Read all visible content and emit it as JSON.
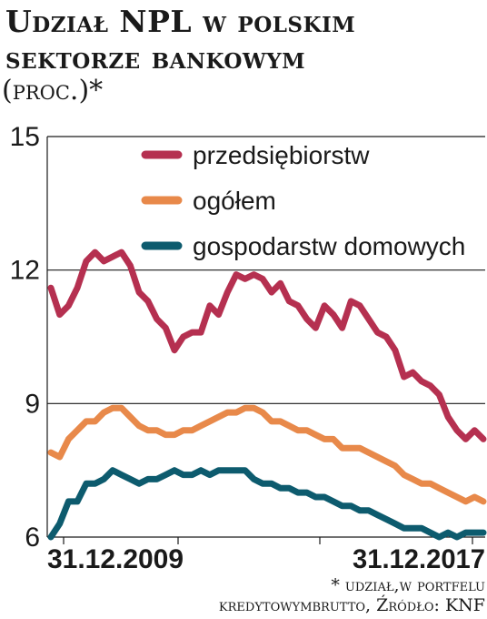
{
  "title_line1": "Udział NPL w polskim",
  "title_line2": "sektorze bankowym",
  "subtitle": "(proc.)*",
  "footnote_line1": "* udział,w portfelu",
  "footnote_line2": "kredytowymbrutto, Źródło: KNF",
  "colors": {
    "enterprises": "#b53050",
    "total": "#e8894a",
    "households": "#0d5b6e",
    "grid": "#1a1a1a"
  },
  "chart_data": {
    "type": "line",
    "x_start_label": "31.12.2009",
    "x_end_label": "31.12.2017",
    "y_ticks": [
      15,
      12,
      9,
      6
    ],
    "ylim": [
      6,
      15
    ],
    "grid": true,
    "legend_position": "top-right",
    "series": [
      {
        "name": "przedsiębiorstw",
        "color": "#b53050",
        "values": [
          11.6,
          11.0,
          11.2,
          11.6,
          12.2,
          12.4,
          12.2,
          12.3,
          12.4,
          12.1,
          11.5,
          11.3,
          10.9,
          10.7,
          10.2,
          10.5,
          10.6,
          10.6,
          11.2,
          11.0,
          11.5,
          11.9,
          11.8,
          11.9,
          11.8,
          11.5,
          11.7,
          11.3,
          11.2,
          10.9,
          10.7,
          11.2,
          11.0,
          10.7,
          11.3,
          11.2,
          10.9,
          10.6,
          10.5,
          10.2,
          9.6,
          9.7,
          9.5,
          9.4,
          9.2,
          8.7,
          8.4,
          8.2,
          8.4,
          8.2
        ]
      },
      {
        "name": "ogółem",
        "color": "#e8894a",
        "values": [
          7.9,
          7.8,
          8.2,
          8.4,
          8.6,
          8.6,
          8.8,
          8.9,
          8.9,
          8.7,
          8.5,
          8.4,
          8.4,
          8.3,
          8.3,
          8.4,
          8.4,
          8.5,
          8.6,
          8.7,
          8.8,
          8.8,
          8.9,
          8.9,
          8.8,
          8.6,
          8.6,
          8.5,
          8.4,
          8.4,
          8.3,
          8.2,
          8.2,
          8.0,
          8.0,
          8.0,
          7.9,
          7.8,
          7.7,
          7.6,
          7.4,
          7.3,
          7.2,
          7.2,
          7.1,
          7.0,
          6.9,
          6.8,
          6.9,
          6.8
        ]
      },
      {
        "name": "gospodarstw domowych",
        "color": "#0d5b6e",
        "values": [
          6.0,
          6.3,
          6.8,
          6.8,
          7.2,
          7.2,
          7.3,
          7.5,
          7.4,
          7.3,
          7.2,
          7.3,
          7.3,
          7.4,
          7.5,
          7.4,
          7.4,
          7.5,
          7.4,
          7.5,
          7.5,
          7.5,
          7.5,
          7.3,
          7.2,
          7.2,
          7.1,
          7.1,
          7.0,
          7.0,
          6.9,
          6.9,
          6.8,
          6.7,
          6.7,
          6.6,
          6.6,
          6.5,
          6.4,
          6.3,
          6.2,
          6.2,
          6.2,
          6.1,
          6.0,
          6.1,
          6.0,
          6.1,
          6.1,
          6.1
        ]
      }
    ]
  }
}
